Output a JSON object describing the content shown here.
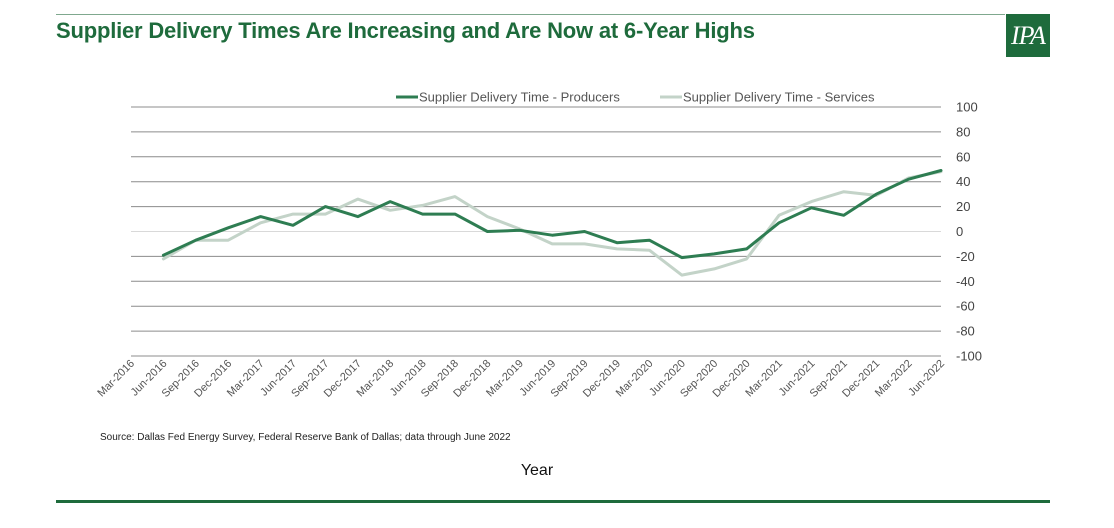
{
  "header": {
    "title": "Supplier Delivery Times Are Increasing and  Are Now at 6-Year Highs",
    "logo_text": "IPA"
  },
  "footer": {
    "source": "Source: Dallas Fed Energy Survey, Federal Reserve Bank of Dallas; data through June 2022"
  },
  "colors": {
    "brand": "#1e6b3c",
    "producers": "#2e7d52",
    "services": "#c3d3c8"
  },
  "chart_data": {
    "type": "line",
    "title": "Supplier Delivery Times Are Increasing and  Are Now at 6-Year Highs",
    "xlabel": "Year",
    "ylabel": "",
    "ylim": [
      -100,
      100
    ],
    "yticks": [
      100,
      80,
      60,
      40,
      20,
      0,
      -20,
      -40,
      -60,
      -80,
      -100
    ],
    "grid": true,
    "legend": "top-center",
    "categories": [
      "Mar-2016",
      "Jun-2016",
      "Sep-2016",
      "Dec-2016",
      "Mar-2017",
      "Jun-2017",
      "Sep-2017",
      "Dec-2017",
      "Mar-2018",
      "Jun-2018",
      "Sep-2018",
      "Dec-2018",
      "Mar-2019",
      "Jun-2019",
      "Sep-2019",
      "Dec-2019",
      "Mar-2020",
      "Jun-2020",
      "Sep-2020",
      "Dec-2020",
      "Mar-2021",
      "Jun-2021",
      "Sep-2021",
      "Dec-2021",
      "Mar-2022",
      "Jun-2022"
    ],
    "series": [
      {
        "name": "Supplier Delivery Time - Producers",
        "color": "#2e7d52",
        "values": [
          null,
          -19,
          -7,
          3,
          12,
          5,
          20,
          12,
          24,
          14,
          14,
          0,
          1,
          -3,
          0,
          -9,
          -7,
          -21,
          -18,
          -14,
          7,
          19,
          13,
          30,
          42,
          49
        ]
      },
      {
        "name": "Supplier Delivery Time - Services",
        "color": "#c3d3c8",
        "values": [
          null,
          -22,
          -7,
          -7,
          7,
          14,
          14,
          26,
          17,
          21,
          28,
          12,
          2,
          -10,
          -10,
          -14,
          -15,
          -35,
          -30,
          -22,
          13,
          24,
          32,
          29,
          43,
          48
        ]
      }
    ]
  }
}
